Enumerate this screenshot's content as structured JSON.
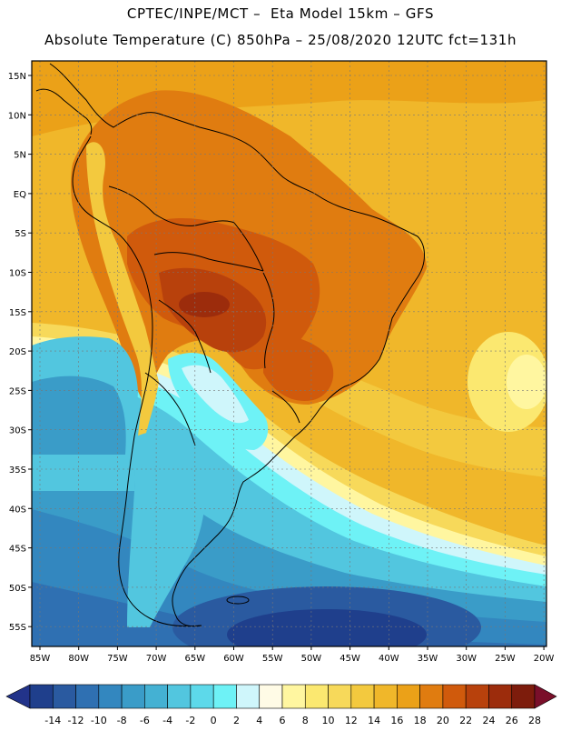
{
  "header": {
    "line1": "CPTEC/INPE/MCT –  Eta Model 15km – GFS",
    "line2": "Absolute Temperature (C) 850hPa – 25/08/2020 12UTC fct=131h"
  },
  "map": {
    "lat_labels": [
      "15N",
      "10N",
      "5N",
      "EQ",
      "5S",
      "10S",
      "15S",
      "20S",
      "25S",
      "30S",
      "35S",
      "40S",
      "45S",
      "50S",
      "55S"
    ],
    "lon_labels": [
      "85W",
      "80W",
      "75W",
      "70W",
      "65W",
      "60W",
      "55W",
      "50W",
      "45W",
      "40W",
      "35W",
      "30W",
      "25W",
      "20W"
    ]
  },
  "colorbar": {
    "ticks": [
      "-14",
      "-12",
      "-10",
      "-8",
      "-6",
      "-4",
      "-2",
      "0",
      "2",
      "4",
      "6",
      "8",
      "10",
      "12",
      "14",
      "16",
      "18",
      "20",
      "22",
      "24",
      "26",
      "28"
    ],
    "colors": [
      "#1f3f8c",
      "#2a5aa0",
      "#2f70b2",
      "#3387bf",
      "#3a9cc8",
      "#44b1d3",
      "#52c6df",
      "#5dd9ea",
      "#6ef2f6",
      "#cff6fb",
      "#fffbe6",
      "#fff6a0",
      "#fbe870",
      "#f7d95a",
      "#f3c93e",
      "#f0b72a",
      "#eba118",
      "#e07c10",
      "#d05a0c",
      "#b8410c",
      "#9c2c0c",
      "#7d1c0c"
    ],
    "low_end_color": "#22338a",
    "high_end_color": "#7a0f2a"
  }
}
